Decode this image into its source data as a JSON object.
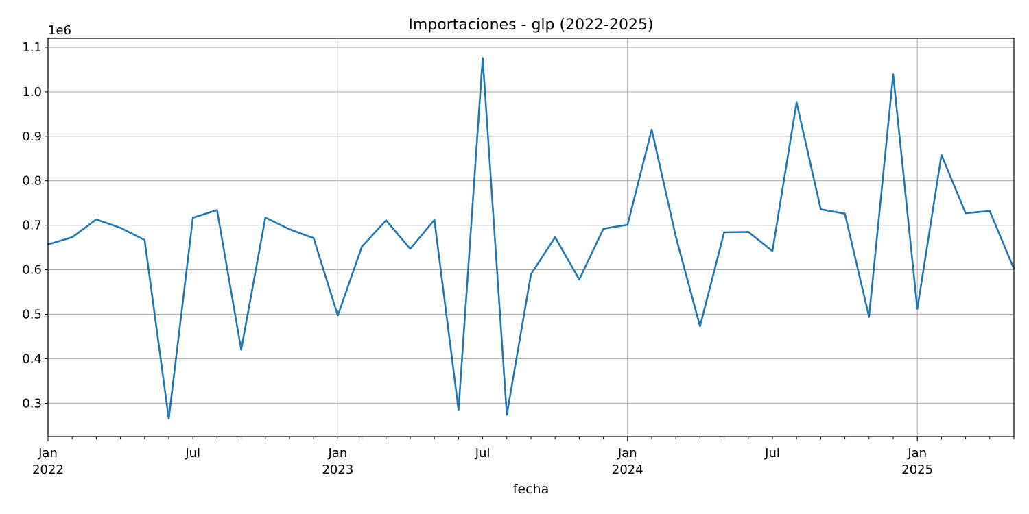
{
  "chart_data": {
    "type": "line",
    "title": "Importaciones - glp (2022-2025)",
    "xlabel": "fecha",
    "ylabel": "",
    "y_offset_label": "1e6",
    "ylim": [
      225000,
      1120000
    ],
    "grid": true,
    "series": [
      {
        "color": "#1f77b4",
        "x": [
          "2022-01",
          "2022-02",
          "2022-03",
          "2022-04",
          "2022-05",
          "2022-06",
          "2022-07",
          "2022-08",
          "2022-09",
          "2022-10",
          "2022-11",
          "2022-12",
          "2023-01",
          "2023-02",
          "2023-03",
          "2023-04",
          "2023-05",
          "2023-06",
          "2023-07",
          "2023-08",
          "2023-09",
          "2023-10",
          "2023-11",
          "2023-12",
          "2024-01",
          "2024-02",
          "2024-03",
          "2024-04",
          "2024-05",
          "2024-06",
          "2024-07",
          "2024-08",
          "2024-09",
          "2024-10",
          "2024-11",
          "2024-12",
          "2025-01",
          "2025-02",
          "2025-03",
          "2025-04",
          "2025-05"
        ],
        "values": [
          657000,
          673000,
          713000,
          694000,
          667000,
          265000,
          717000,
          734000,
          420000,
          717000,
          691000,
          671000,
          497000,
          652000,
          711000,
          647000,
          712000,
          285000,
          1076000,
          274000,
          590000,
          673000,
          578000,
          692000,
          701000,
          915000,
          674000,
          473000,
          684000,
          685000,
          642000,
          976000,
          736000,
          726000,
          494000,
          1039000,
          512000,
          858000,
          727000,
          732000,
          602000
        ]
      }
    ],
    "y_ticks": [
      {
        "value": 300000,
        "label": "0.3"
      },
      {
        "value": 400000,
        "label": "0.4"
      },
      {
        "value": 500000,
        "label": "0.5"
      },
      {
        "value": 600000,
        "label": "0.6"
      },
      {
        "value": 700000,
        "label": "0.7"
      },
      {
        "value": 800000,
        "label": "0.8"
      },
      {
        "value": 900000,
        "label": "0.9"
      },
      {
        "value": 1000000,
        "label": "1.0"
      },
      {
        "value": 1100000,
        "label": "1.1"
      }
    ],
    "x_ticks_major": [
      {
        "index": 0,
        "label": "Jan",
        "year": "2022"
      },
      {
        "index": 12,
        "label": "Jan",
        "year": "2023"
      },
      {
        "index": 24,
        "label": "Jan",
        "year": "2024"
      },
      {
        "index": 36,
        "label": "Jan",
        "year": "2025"
      }
    ],
    "x_ticks_mid": [
      {
        "index": 6,
        "label": "Jul"
      },
      {
        "index": 18,
        "label": "Jul"
      },
      {
        "index": 30,
        "label": "Jul"
      }
    ]
  }
}
